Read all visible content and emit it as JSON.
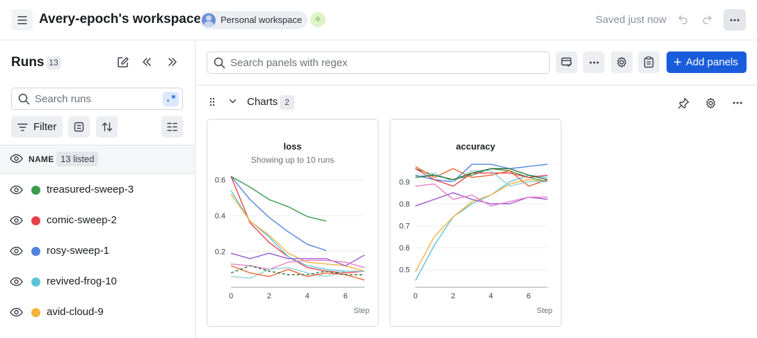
{
  "header": {
    "menu_icon": "hamburger-icon",
    "title": "Avery-epoch's workspace",
    "workspace_badge": "Personal workspace",
    "saved_status": "Saved just now"
  },
  "sidebar": {
    "title": "Runs",
    "count": "13",
    "search_placeholder": "Search runs",
    "regex_label": ".*",
    "filter_label": "Filter",
    "name_column": "NAME",
    "listed_label": "13 listed",
    "runs": [
      {
        "name": "treasured-sweep-3",
        "color": "#3c9a4b"
      },
      {
        "name": "comic-sweep-2",
        "color": "#e8404a"
      },
      {
        "name": "rosy-sweep-1",
        "color": "#5283e0"
      },
      {
        "name": "revived-frog-10",
        "color": "#5cc3d6"
      },
      {
        "name": "avid-cloud-9",
        "color": "#f5b23d"
      }
    ]
  },
  "main": {
    "search_placeholder": "Search panels with regex",
    "add_panels_label": "Add panels",
    "section_title": "Charts",
    "section_count": "2"
  },
  "colors": {
    "accent": "#1a5ddc"
  },
  "chart_data": [
    {
      "type": "line",
      "title": "loss",
      "subtitle": "Showing up to 10 runs",
      "xlabel": "Step",
      "xlim": [
        0,
        7
      ],
      "ylim": [
        0.0,
        0.63
      ],
      "xticks": [
        "0",
        "2",
        "4",
        "6"
      ],
      "yticks": [
        "0.2",
        "0.4",
        "0.6"
      ],
      "ytick_values": [
        0.2,
        0.4,
        0.6
      ],
      "xtick_values": [
        0,
        2,
        4,
        6
      ],
      "series": [
        {
          "color": "#3c9a4b",
          "x": [
            0,
            1,
            2,
            3,
            4,
            5
          ],
          "y": [
            0.62,
            0.56,
            0.49,
            0.45,
            0.395,
            0.37
          ]
        },
        {
          "color": "#5283e0",
          "x": [
            0,
            1,
            2,
            3,
            4,
            5
          ],
          "y": [
            0.62,
            0.49,
            0.39,
            0.31,
            0.24,
            0.205
          ]
        },
        {
          "color": "#e8404a",
          "x": [
            0,
            1,
            2,
            3,
            4,
            5,
            6,
            7
          ],
          "y": [
            0.62,
            0.36,
            0.25,
            0.17,
            0.11,
            0.09,
            0.08,
            0.09
          ]
        },
        {
          "color": "#5cc3d6",
          "x": [
            0,
            1,
            2,
            3,
            4,
            5,
            6,
            7
          ],
          "y": [
            0.54,
            0.37,
            0.28,
            0.17,
            0.12,
            0.1,
            0.09,
            0.09
          ]
        },
        {
          "color": "#f5b23d",
          "x": [
            0,
            1,
            2,
            3,
            4,
            5,
            6,
            7
          ],
          "y": [
            0.52,
            0.37,
            0.29,
            0.19,
            0.14,
            0.13,
            0.12,
            0.09
          ]
        },
        {
          "color": "#9b59d0",
          "x": [
            0,
            1,
            2,
            3,
            4,
            5,
            6,
            7
          ],
          "y": [
            0.19,
            0.16,
            0.19,
            0.16,
            0.16,
            0.16,
            0.12,
            0.18
          ]
        },
        {
          "color": "#e87fc8",
          "x": [
            0,
            1,
            2,
            3,
            4,
            5,
            6,
            7
          ],
          "y": [
            0.13,
            0.12,
            0.1,
            0.14,
            0.15,
            0.15,
            0.14,
            0.11
          ]
        },
        {
          "color": "#8fd1da",
          "x": [
            0,
            1,
            2,
            3,
            4,
            5,
            6,
            7
          ],
          "y": [
            0.06,
            0.05,
            0.1,
            0.11,
            0.08,
            0.06,
            0.09,
            0.09
          ]
        },
        {
          "color": "#e8622a",
          "x": [
            0,
            1,
            2,
            3,
            4,
            5,
            6,
            7
          ],
          "y": [
            0.12,
            0.08,
            0.06,
            0.1,
            0.06,
            0.08,
            0.07,
            0.04
          ]
        },
        {
          "color": "#2f6b3a",
          "dashed": true,
          "x": [
            0,
            1,
            2,
            3,
            4,
            5,
            6,
            7
          ],
          "y": [
            0.08,
            0.12,
            0.09,
            0.07,
            0.07,
            0.09,
            0.07,
            0.07
          ]
        }
      ]
    },
    {
      "type": "line",
      "title": "accuracy",
      "xlabel": "Step",
      "xlim": [
        0,
        7
      ],
      "ylim": [
        0.42,
        0.99
      ],
      "xticks": [
        "0",
        "2",
        "4",
        "6"
      ],
      "yticks": [
        "0.5",
        "0.6",
        "0.7",
        "0.8",
        "0.9"
      ],
      "ytick_values": [
        0.5,
        0.6,
        0.7,
        0.8,
        0.9
      ],
      "xtick_values": [
        0,
        2,
        4,
        6
      ],
      "series": [
        {
          "color": "#5cc3d6",
          "x": [
            0,
            1,
            2,
            3,
            4,
            5,
            6,
            7
          ],
          "y": [
            0.45,
            0.61,
            0.74,
            0.8,
            0.84,
            0.9,
            0.93,
            0.92
          ]
        },
        {
          "color": "#f5b23d",
          "x": [
            0,
            1,
            2,
            3,
            4,
            5,
            6,
            7
          ],
          "y": [
            0.49,
            0.65,
            0.74,
            0.81,
            0.84,
            0.89,
            0.91,
            0.9
          ]
        },
        {
          "color": "#9b59d0",
          "x": [
            0,
            1,
            2,
            3,
            4,
            5,
            6,
            7
          ],
          "y": [
            0.79,
            0.82,
            0.85,
            0.82,
            0.8,
            0.8,
            0.83,
            0.82
          ]
        },
        {
          "color": "#e87fc8",
          "x": [
            0,
            1,
            2,
            3,
            4,
            5,
            6,
            7
          ],
          "y": [
            0.88,
            0.89,
            0.82,
            0.84,
            0.79,
            0.81,
            0.83,
            0.83
          ]
        },
        {
          "color": "#5283e0",
          "x": [
            0,
            1,
            2,
            3,
            4,
            5,
            6,
            7
          ],
          "y": [
            0.93,
            0.91,
            0.9,
            0.98,
            0.98,
            0.96,
            0.97,
            0.98
          ]
        },
        {
          "color": "#3c9a4b",
          "x": [
            0,
            1,
            2,
            3,
            4,
            5,
            6,
            7
          ],
          "y": [
            0.96,
            0.93,
            0.91,
            0.93,
            0.96,
            0.95,
            0.92,
            0.9
          ]
        },
        {
          "color": "#e8404a",
          "x": [
            0,
            1,
            2,
            3,
            4,
            5,
            6,
            7
          ],
          "y": [
            0.96,
            0.91,
            0.88,
            0.94,
            0.94,
            0.94,
            0.92,
            0.93
          ]
        },
        {
          "color": "#e8622a",
          "x": [
            0,
            1,
            2,
            3,
            4,
            5,
            6,
            7
          ],
          "y": [
            0.97,
            0.92,
            0.96,
            0.92,
            0.93,
            0.95,
            0.88,
            0.91
          ]
        },
        {
          "color": "#8fd1da",
          "x": [
            0,
            1,
            2,
            3,
            4,
            5,
            6,
            7
          ],
          "y": [
            0.92,
            0.94,
            0.9,
            0.95,
            0.95,
            0.88,
            0.9,
            0.9
          ]
        },
        {
          "color": "#2f6b3a",
          "x": [
            0,
            1,
            2,
            3,
            4,
            5,
            6,
            7
          ],
          "y": [
            0.92,
            0.93,
            0.91,
            0.94,
            0.96,
            0.96,
            0.93,
            0.91
          ]
        }
      ]
    }
  ]
}
